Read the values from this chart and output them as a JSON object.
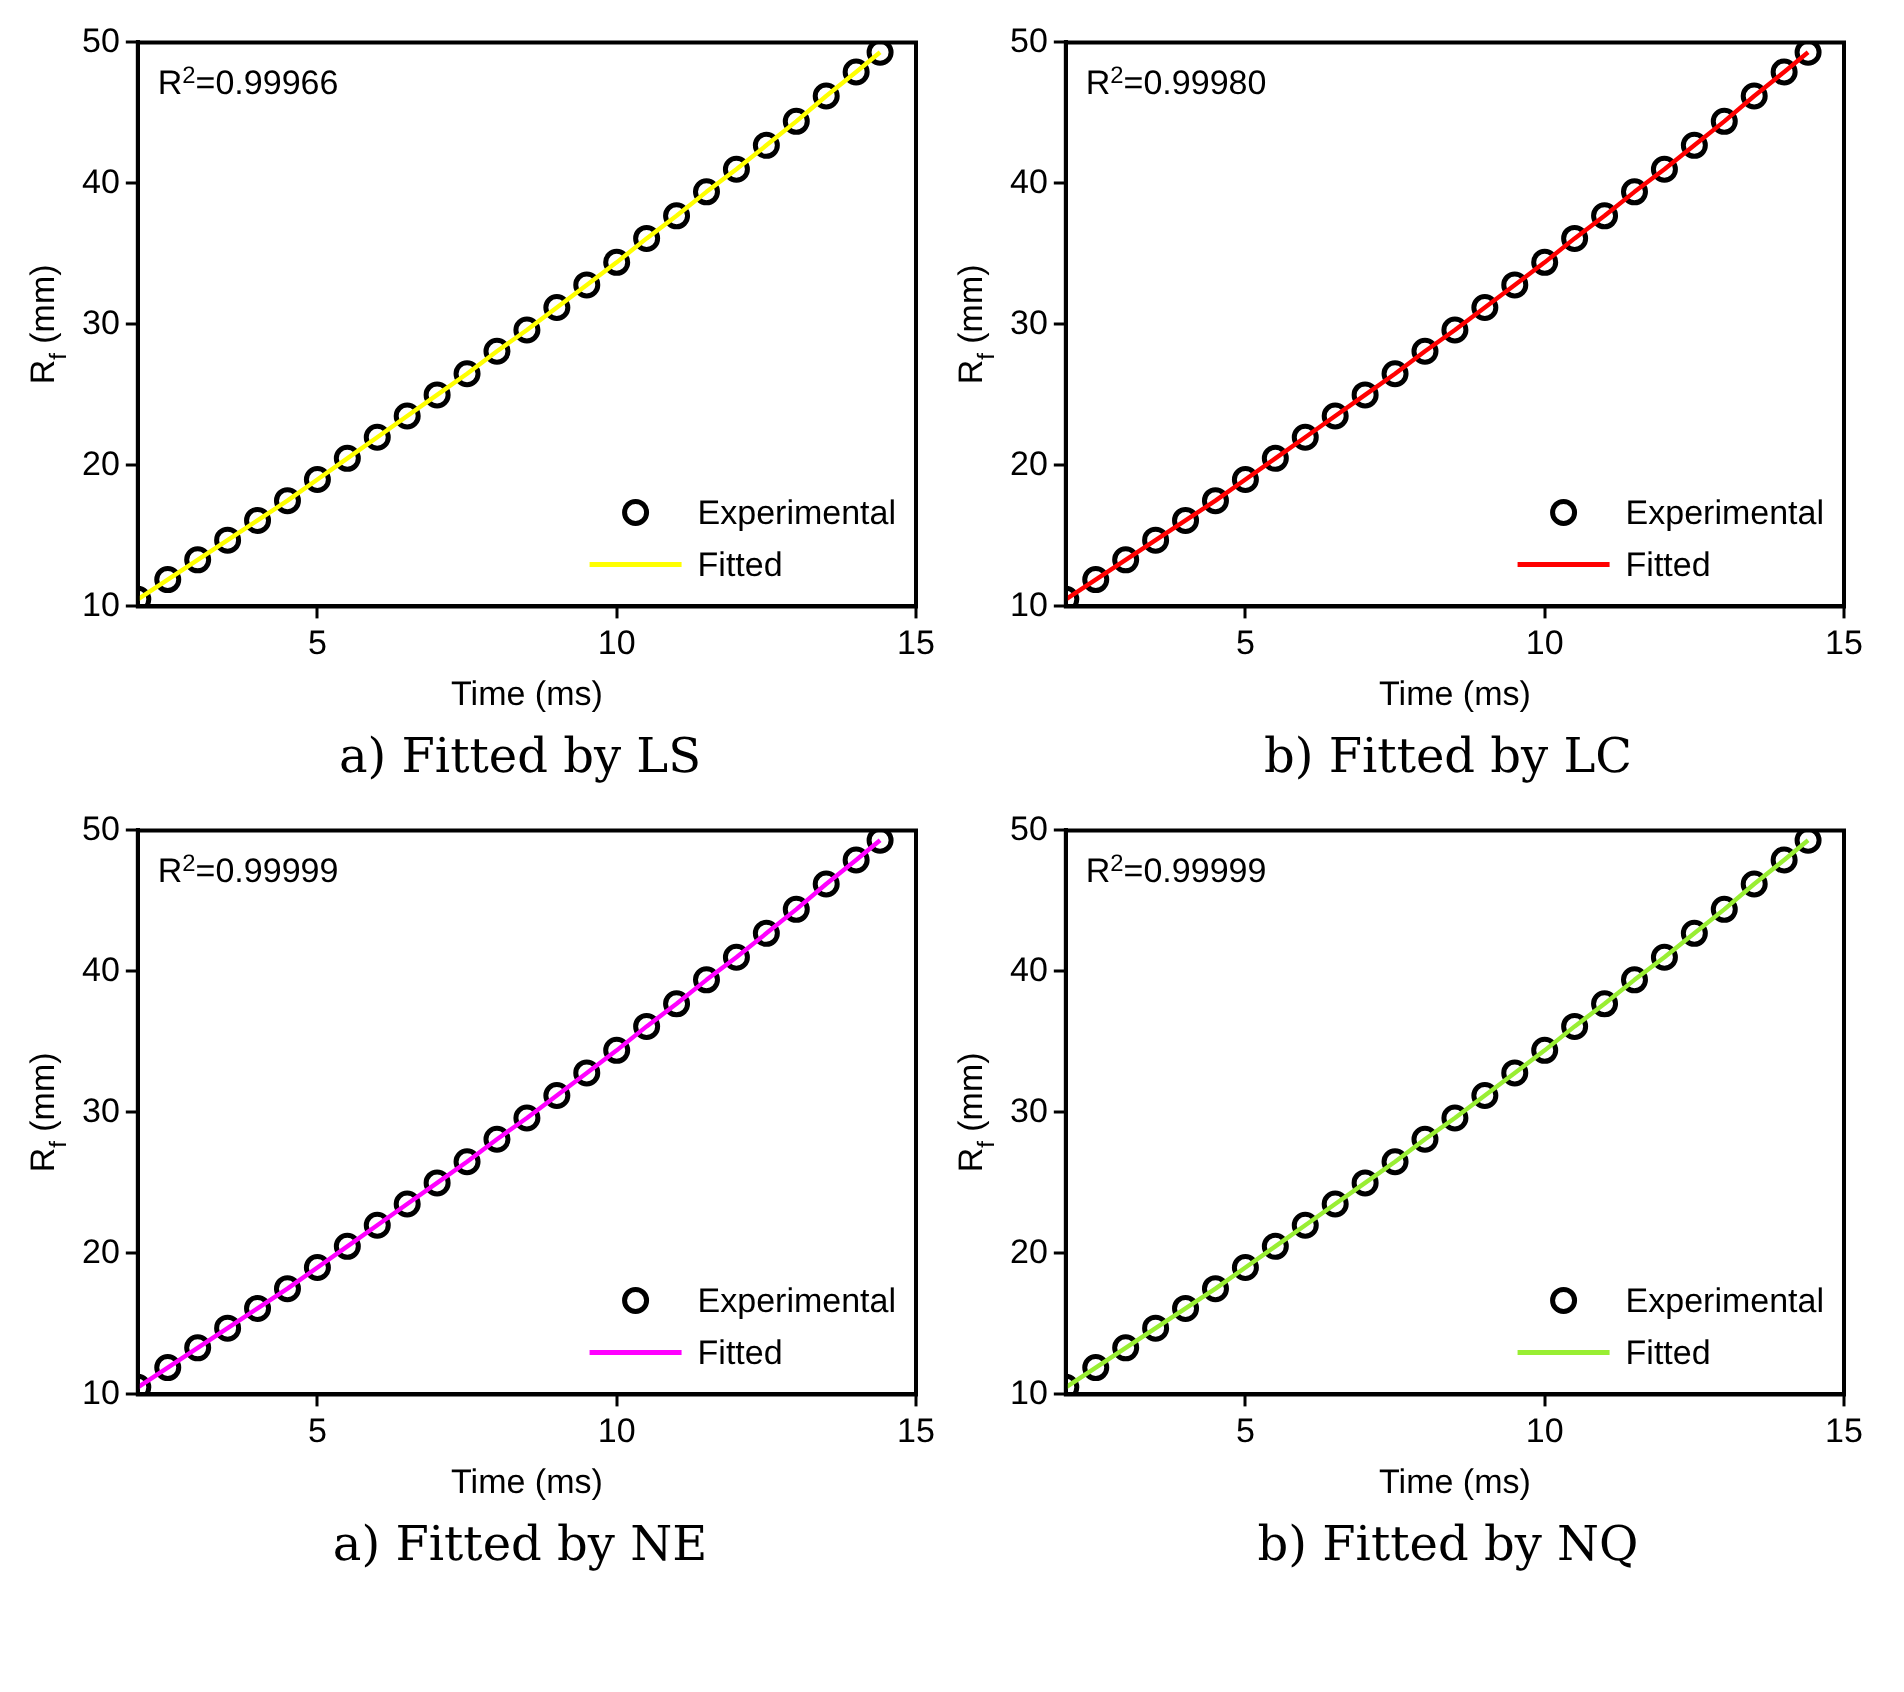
{
  "chart_data": [
    {
      "type": "scatter",
      "title": "a) Fitted by LS",
      "xlabel": "Time (ms)",
      "ylabel": "R$_{f}$ (mm)",
      "annotations": [
        "R$^{2}$=0.99966"
      ],
      "xlim": [
        2,
        15
      ],
      "ylim": [
        10,
        50
      ],
      "xticks": [
        5,
        10,
        15
      ],
      "yticks": [
        10,
        20,
        30,
        40,
        50
      ],
      "grid": false,
      "legend": "bottom right",
      "x": [
        2,
        2.5,
        3,
        3.5,
        4,
        4.5,
        5,
        5.5,
        6,
        6.5,
        7,
        7.5,
        8,
        8.5,
        9,
        9.5,
        10,
        10.5,
        11,
        11.5,
        12,
        12.5,
        13,
        13.5,
        14,
        14.4
      ],
      "series": [
        {
          "name": "Experimental",
          "marker": "circle",
          "color": "#000000",
          "values": [
            10.5,
            11.9,
            13.3,
            14.7,
            16.1,
            17.5,
            19.0,
            20.5,
            22.0,
            23.5,
            25.0,
            26.5,
            28.1,
            29.6,
            31.2,
            32.8,
            34.4,
            36.1,
            37.7,
            39.4,
            41.0,
            42.7,
            44.4,
            46.2,
            47.9,
            49.3
          ]
        },
        {
          "name": "Fitted",
          "type": "line",
          "color": "#ffff00",
          "values": [
            10.5,
            11.9,
            13.3,
            14.7,
            16.1,
            17.5,
            19.0,
            20.5,
            22.0,
            23.5,
            25.0,
            26.5,
            28.1,
            29.6,
            31.2,
            32.8,
            34.4,
            36.1,
            37.7,
            39.4,
            41.0,
            42.7,
            44.4,
            46.2,
            47.9,
            49.3
          ]
        }
      ]
    },
    {
      "type": "scatter",
      "title": "b) Fitted by LC",
      "xlabel": "Time (ms)",
      "ylabel": "R$_{f}$ (mm)",
      "annotations": [
        "R$^{2}$=0.99980"
      ],
      "xlim": [
        2,
        15
      ],
      "ylim": [
        10,
        50
      ],
      "xticks": [
        5,
        10,
        15
      ],
      "yticks": [
        10,
        20,
        30,
        40,
        50
      ],
      "grid": false,
      "legend": "bottom right",
      "x": [
        2,
        2.5,
        3,
        3.5,
        4,
        4.5,
        5,
        5.5,
        6,
        6.5,
        7,
        7.5,
        8,
        8.5,
        9,
        9.5,
        10,
        10.5,
        11,
        11.5,
        12,
        12.5,
        13,
        13.5,
        14,
        14.4
      ],
      "series": [
        {
          "name": "Experimental",
          "marker": "circle",
          "color": "#000000",
          "values": [
            10.5,
            11.9,
            13.3,
            14.7,
            16.1,
            17.5,
            19.0,
            20.5,
            22.0,
            23.5,
            25.0,
            26.5,
            28.1,
            29.6,
            31.2,
            32.8,
            34.4,
            36.1,
            37.7,
            39.4,
            41.0,
            42.7,
            44.4,
            46.2,
            47.9,
            49.3
          ]
        },
        {
          "name": "Fitted",
          "type": "line",
          "color": "#ff0000",
          "values": [
            10.5,
            11.9,
            13.3,
            14.7,
            16.1,
            17.5,
            19.0,
            20.5,
            22.0,
            23.5,
            25.0,
            26.5,
            28.1,
            29.6,
            31.2,
            32.8,
            34.4,
            36.1,
            37.7,
            39.4,
            41.0,
            42.7,
            44.4,
            46.2,
            47.9,
            49.3
          ]
        }
      ]
    },
    {
      "type": "scatter",
      "title": "a) Fitted by NE",
      "xlabel": "Time (ms)",
      "ylabel": "R$_{f}$ (mm)",
      "annotations": [
        "R$^{2}$=0.99999"
      ],
      "xlim": [
        2,
        15
      ],
      "ylim": [
        10,
        50
      ],
      "xticks": [
        5,
        10,
        15
      ],
      "yticks": [
        10,
        20,
        30,
        40,
        50
      ],
      "grid": false,
      "legend": "bottom right",
      "x": [
        2,
        2.5,
        3,
        3.5,
        4,
        4.5,
        5,
        5.5,
        6,
        6.5,
        7,
        7.5,
        8,
        8.5,
        9,
        9.5,
        10,
        10.5,
        11,
        11.5,
        12,
        12.5,
        13,
        13.5,
        14,
        14.4
      ],
      "series": [
        {
          "name": "Experimental",
          "marker": "circle",
          "color": "#000000",
          "values": [
            10.5,
            11.9,
            13.3,
            14.7,
            16.1,
            17.5,
            19.0,
            20.5,
            22.0,
            23.5,
            25.0,
            26.5,
            28.1,
            29.6,
            31.2,
            32.8,
            34.4,
            36.1,
            37.7,
            39.4,
            41.0,
            42.7,
            44.4,
            46.2,
            47.9,
            49.3
          ]
        },
        {
          "name": "Fitted",
          "type": "line",
          "color": "#ff00ff",
          "values": [
            10.5,
            11.9,
            13.3,
            14.7,
            16.1,
            17.5,
            19.0,
            20.5,
            22.0,
            23.5,
            25.0,
            26.5,
            28.1,
            29.6,
            31.2,
            32.8,
            34.4,
            36.1,
            37.7,
            39.4,
            41.0,
            42.7,
            44.4,
            46.2,
            47.9,
            49.3
          ]
        }
      ]
    },
    {
      "type": "scatter",
      "title": "b) Fitted by NQ",
      "xlabel": "Time (ms)",
      "ylabel": "R$_{f}$ (mm)",
      "annotations": [
        "R$^{2}$=0.99999"
      ],
      "xlim": [
        2,
        15
      ],
      "ylim": [
        10,
        50
      ],
      "xticks": [
        5,
        10,
        15
      ],
      "yticks": [
        10,
        20,
        30,
        40,
        50
      ],
      "grid": false,
      "legend": "bottom right",
      "x": [
        2,
        2.5,
        3,
        3.5,
        4,
        4.5,
        5,
        5.5,
        6,
        6.5,
        7,
        7.5,
        8,
        8.5,
        9,
        9.5,
        10,
        10.5,
        11,
        11.5,
        12,
        12.5,
        13,
        13.5,
        14,
        14.4
      ],
      "series": [
        {
          "name": "Experimental",
          "marker": "circle",
          "color": "#000000",
          "values": [
            10.5,
            11.9,
            13.3,
            14.7,
            16.1,
            17.5,
            19.0,
            20.5,
            22.0,
            23.5,
            25.0,
            26.5,
            28.1,
            29.6,
            31.2,
            32.8,
            34.4,
            36.1,
            37.7,
            39.4,
            41.0,
            42.7,
            44.4,
            46.2,
            47.9,
            49.3
          ]
        },
        {
          "name": "Fitted",
          "type": "line",
          "color": "#99ee33",
          "values": [
            10.5,
            11.9,
            13.3,
            14.7,
            16.1,
            17.5,
            19.0,
            20.5,
            22.0,
            23.5,
            25.0,
            26.5,
            28.1,
            29.6,
            31.2,
            32.8,
            34.4,
            36.1,
            37.7,
            39.4,
            41.0,
            42.7,
            44.4,
            46.2,
            47.9,
            49.3
          ]
        }
      ]
    }
  ]
}
